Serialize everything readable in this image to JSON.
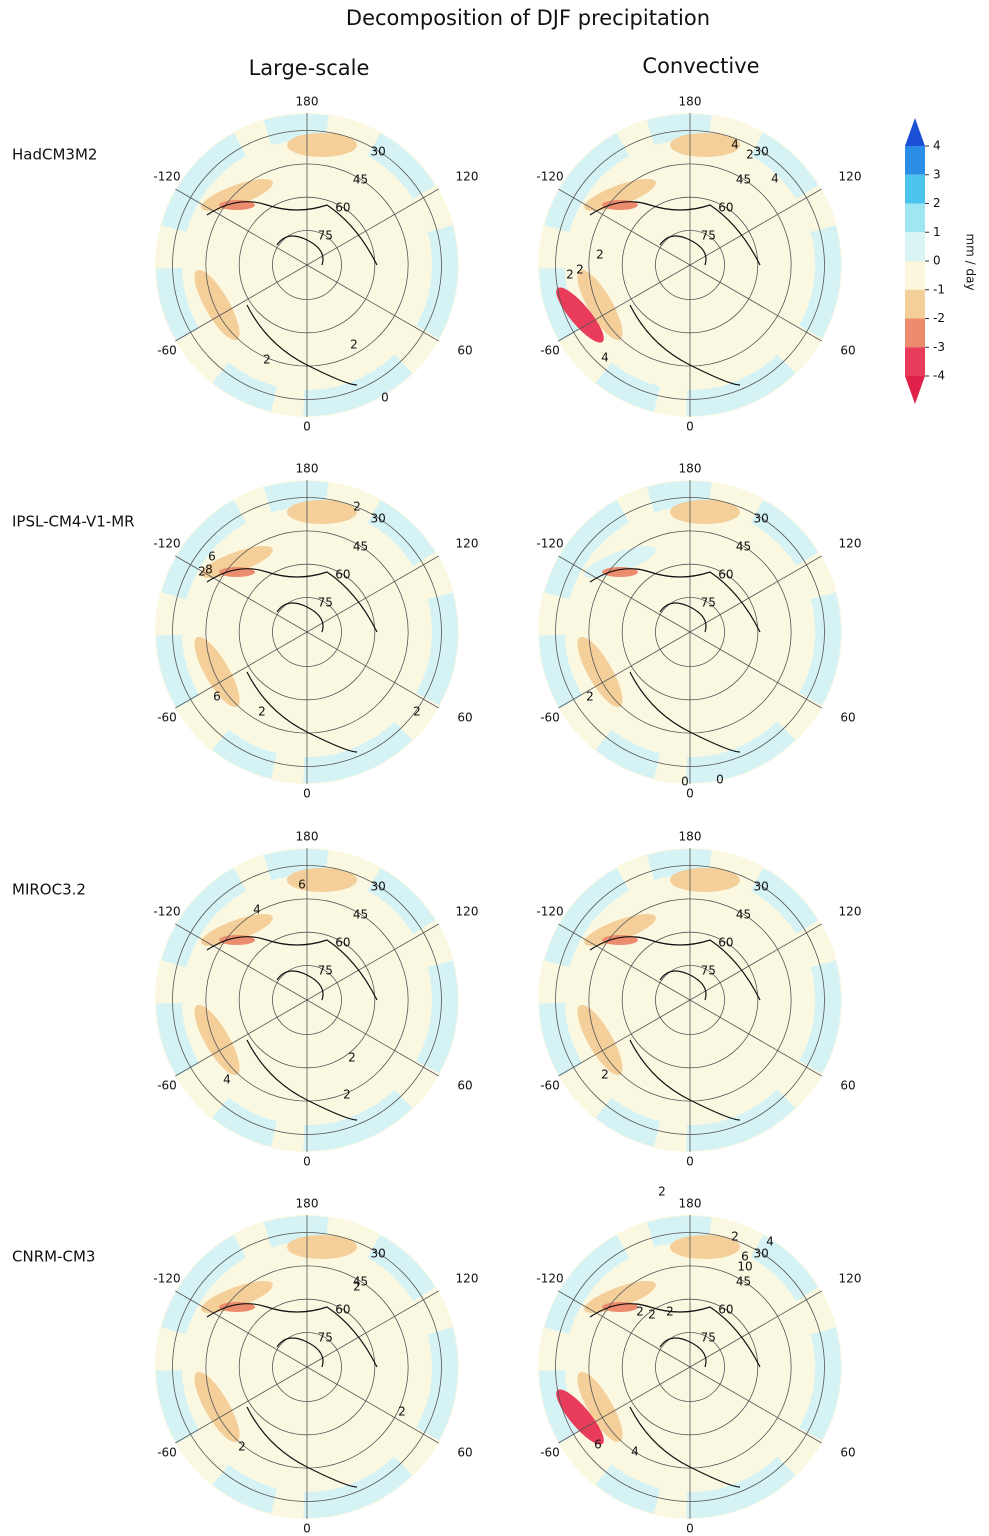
{
  "header": {
    "title": "Decomposition of DJF precipitation",
    "columns": [
      "Large-scale",
      "Convective"
    ]
  },
  "longitude_labels": [
    "180",
    "120",
    "60",
    "0",
    "-60",
    "-120"
  ],
  "latitude_labels": [
    "30",
    "45",
    "60",
    "75"
  ],
  "rows": [
    {
      "label": "HadCM3M2",
      "panels": [
        {
          "contour_labels": [
            "2",
            "2",
            "0"
          ]
        },
        {
          "contour_labels": [
            "2",
            "4",
            "2",
            "2",
            "2",
            "4",
            "4"
          ]
        }
      ]
    },
    {
      "label": "IPSL-CM4-V1-MR",
      "panels": [
        {
          "contour_labels": [
            "2",
            "6",
            "8",
            "2",
            "6",
            "2",
            "2"
          ]
        },
        {
          "contour_labels": [
            "2",
            "0",
            "0"
          ]
        }
      ]
    },
    {
      "label": "MIROC3.2",
      "panels": [
        {
          "contour_labels": [
            "6",
            "4",
            "2",
            "4",
            "2"
          ]
        },
        {
          "contour_labels": [
            "2"
          ]
        }
      ]
    },
    {
      "label": "CNRM-CM3",
      "panels": [
        {
          "contour_labels": [
            "2",
            "2",
            "2"
          ]
        },
        {
          "contour_labels": [
            "2",
            "2",
            "4",
            "6",
            "10",
            "2",
            "2",
            "2",
            "6",
            "4"
          ]
        }
      ]
    }
  ],
  "colorbar": {
    "label": "mm / day",
    "ticks": [
      4,
      3,
      2,
      1,
      0,
      -1,
      -2,
      -3,
      -4
    ],
    "colors": [
      "#2a8ee6",
      "#4cc4ee",
      "#9ee6f2",
      "#d8f4f4",
      "#fbf6dc",
      "#f4cf9a",
      "#ec8c6c",
      "#e83c5a"
    ],
    "over_color": "#1a4fd6",
    "under_color": "#e0214a"
  }
}
